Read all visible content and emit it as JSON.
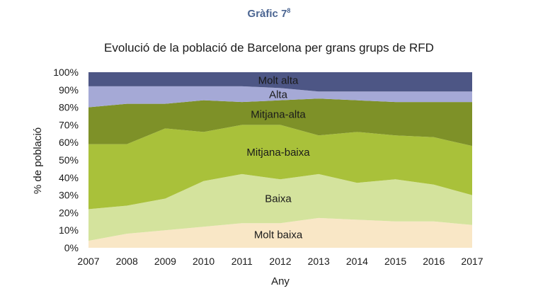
{
  "figure_number": "Gràfic 7",
  "figure_footnote": "8",
  "chart_data": {
    "type": "area",
    "stacked": true,
    "title": "Evolució de la població de Barcelona per grans grups de RFD",
    "xlabel": "Any",
    "ylabel": "% de població",
    "x": [
      "2007",
      "2008",
      "2009",
      "2010",
      "2011",
      "2012",
      "2013",
      "2014",
      "2015",
      "2016",
      "2017"
    ],
    "ylim": [
      0,
      100
    ],
    "y_ticks": [
      "0%",
      "10%",
      "20%",
      "30%",
      "40%",
      "50%",
      "60%",
      "70%",
      "80%",
      "90%",
      "100%"
    ],
    "grid": false,
    "series": [
      {
        "name": "Molt baixa",
        "color": "#f9e7c6",
        "values": [
          4,
          8,
          10,
          12,
          14,
          14,
          17,
          16,
          15,
          15,
          13
        ]
      },
      {
        "name": "Baixa",
        "color": "#d4e39d",
        "values": [
          18,
          16,
          18,
          26,
          28,
          25,
          25,
          21,
          24,
          21,
          17
        ]
      },
      {
        "name": "Mitjana-baixa",
        "color": "#a9c13a",
        "values": [
          37,
          35,
          40,
          28,
          28,
          31,
          22,
          29,
          25,
          27,
          28
        ]
      },
      {
        "name": "Mitjana-alta",
        "color": "#7e9128",
        "values": [
          21,
          23,
          14,
          18,
          13,
          14,
          21,
          18,
          19,
          20,
          25
        ]
      },
      {
        "name": "Alta",
        "color": "#a5a9d6",
        "values": [
          12,
          10,
          10,
          8,
          9,
          7,
          4,
          5,
          6,
          6,
          6
        ]
      },
      {
        "name": "Molt alta",
        "color": "#4d5685",
        "values": [
          8,
          8,
          8,
          8,
          8,
          9,
          11,
          11,
          11,
          11,
          11
        ]
      }
    ]
  }
}
